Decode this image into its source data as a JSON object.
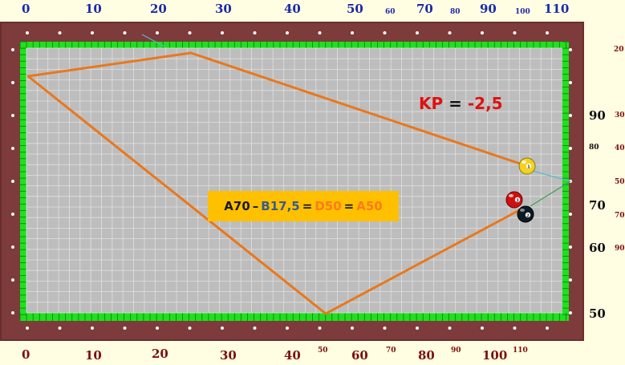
{
  "scale": {
    "top": [
      "0",
      "10",
      "20",
      "30",
      "40",
      "50",
      "60",
      "70",
      "80",
      "90",
      "100",
      "110"
    ],
    "bottom": [
      "0",
      "10",
      "20",
      "30",
      "40",
      "50",
      "60",
      "70",
      "80",
      "90",
      "100",
      "110"
    ],
    "right_outer": [
      "90",
      "80",
      "70",
      "60",
      "50"
    ],
    "right_inner": [
      "20",
      "30",
      "40",
      "50",
      "70",
      "90"
    ]
  },
  "kp": {
    "label": "KP",
    "eq": "=",
    "value": "-2,5"
  },
  "formula": {
    "a": "A70",
    "dash": "–",
    "b": "B17,5",
    "eq1": "=",
    "d": "D50",
    "eq2": "=",
    "a2": "A50"
  },
  "balls": [
    {
      "name": "ball-1",
      "number": "1",
      "color": "#f3d21e"
    },
    {
      "name": "ball-3",
      "number": "3",
      "color": "#d01010"
    },
    {
      "name": "ball-2",
      "number": "2",
      "color": "#0d1a24"
    }
  ],
  "colors": {
    "rail": "#7d3b3b",
    "cloth": "#bdbdbd",
    "cushion": "#1fe01f",
    "path": "#e8781e",
    "aim_line": "#5fb8c8",
    "green_line": "#3aa050"
  }
}
